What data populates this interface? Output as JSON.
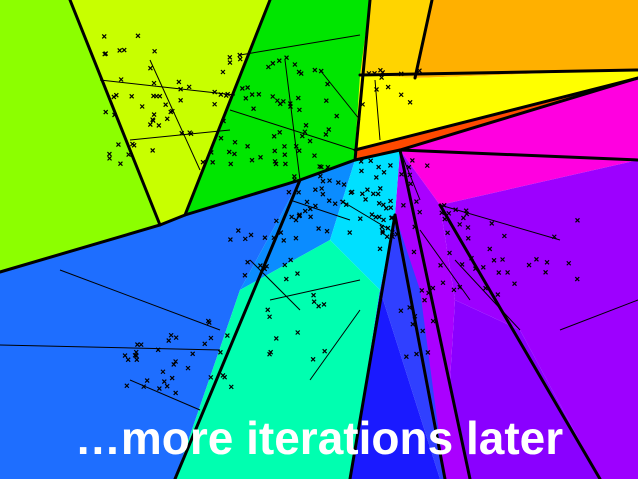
{
  "slide": {
    "caption": "…more iterations later"
  },
  "colors": {
    "region_palette": [
      "#8cff00",
      "#c8ff00",
      "#00e600",
      "#ffd400",
      "#ffb000",
      "#ffff00",
      "#ff4a00",
      "#ff00e0",
      "#9d00ff",
      "#8a00ff",
      "#1a1aff",
      "#1e6eff",
      "#0b8cff",
      "#00e0ff",
      "#00ffb0",
      "#00ff80",
      "#3040ff",
      "#aa00ff"
    ],
    "boundary": "#000000",
    "sample_marker": "#000000",
    "caption_text": "#ffffff"
  },
  "diagram": {
    "kind": "partition tree cells with sample points",
    "marker_symbol": "×"
  }
}
